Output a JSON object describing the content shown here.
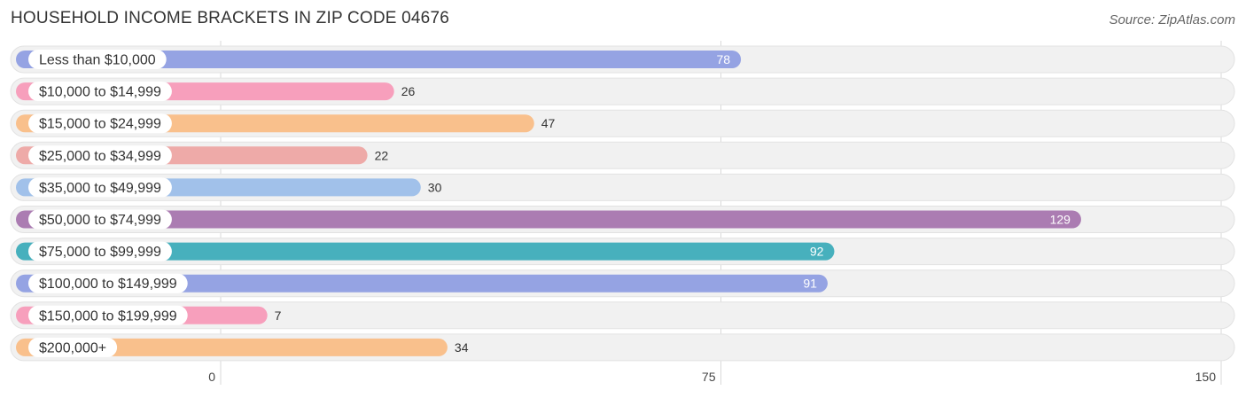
{
  "title": "HOUSEHOLD INCOME BRACKETS IN ZIP CODE 04676",
  "source": "Source: ZipAtlas.com",
  "chart_data": {
    "type": "bar",
    "orientation": "horizontal",
    "title": "HOUSEHOLD INCOME BRACKETS IN ZIP CODE 04676",
    "xlabel": "",
    "ylabel": "",
    "xlim": [
      0,
      150
    ],
    "ticks": [
      0,
      75,
      150
    ],
    "tick_labels": [
      "0",
      "75",
      "150"
    ],
    "grid": true,
    "categories": [
      "Less than $10,000",
      "$10,000 to $14,999",
      "$15,000 to $24,999",
      "$25,000 to $34,999",
      "$35,000 to $49,999",
      "$50,000 to $74,999",
      "$75,000 to $99,999",
      "$100,000 to $149,999",
      "$150,000 to $199,999",
      "$200,000+"
    ],
    "values": [
      78,
      26,
      47,
      22,
      30,
      129,
      92,
      91,
      7,
      34
    ],
    "value_labels": [
      "78",
      "26",
      "47",
      "22",
      "30",
      "129",
      "92",
      "91",
      "7",
      "34"
    ],
    "colors": [
      "#95a3e3",
      "#f79fbc",
      "#f9c08c",
      "#eeaaa8",
      "#a1c1ea",
      "#ab7cb2",
      "#47b0bd",
      "#95a3e3",
      "#f79fbc",
      "#f9c08c"
    ]
  }
}
